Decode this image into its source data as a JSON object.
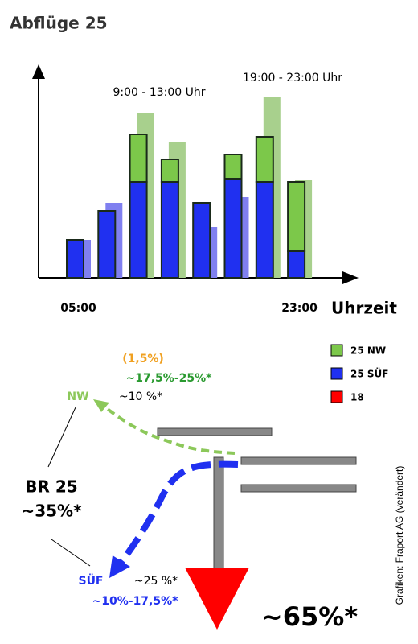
{
  "title": "Abflüge 25",
  "chart_data": {
    "type": "bar",
    "categories": [
      "05:00",
      null,
      null,
      null,
      null,
      null,
      null,
      "23:00"
    ],
    "x_label": "Uhrzeit",
    "annotations": [
      "9:00 - 13:00 Uhr",
      "19:00 - 23:00 Uhr"
    ],
    "ylim": [
      0,
      257
    ],
    "series": [
      {
        "name": "25 SÜF",
        "color": "#2030f0",
        "values": [
          47,
          83,
          119,
          119,
          93,
          123,
          119,
          33
        ]
      },
      {
        "name": "25 NW",
        "color": "#7cc84a",
        "values": [
          0,
          0,
          59,
          28,
          0,
          30,
          56,
          86
        ]
      },
      {
        "name": "18",
        "color": "#ff0000",
        "values": [
          47,
          93,
          205,
          168,
          63,
          100,
          224,
          122
        ],
        "bar_colors": [
          "#8080f0",
          "#8080f0",
          "#a8d08d",
          "#a8d08d",
          "#8080f0",
          "#8080f0",
          "#a8d08d",
          "#a8d08d"
        ]
      }
    ]
  },
  "diagram": {
    "nw": {
      "label": "NW",
      "share": "~10 %*",
      "range": "~17,5%-25%*",
      "extra": "(1,5%)"
    },
    "suef": {
      "label": "SÜF",
      "share": "~25 %*",
      "range": "~10%-17,5%*"
    },
    "br": {
      "label": "BR 25",
      "share": "~35%*"
    },
    "south": {
      "share": "~65%*"
    },
    "credit": "Grafiken:  Fraport AG (verändert)"
  }
}
